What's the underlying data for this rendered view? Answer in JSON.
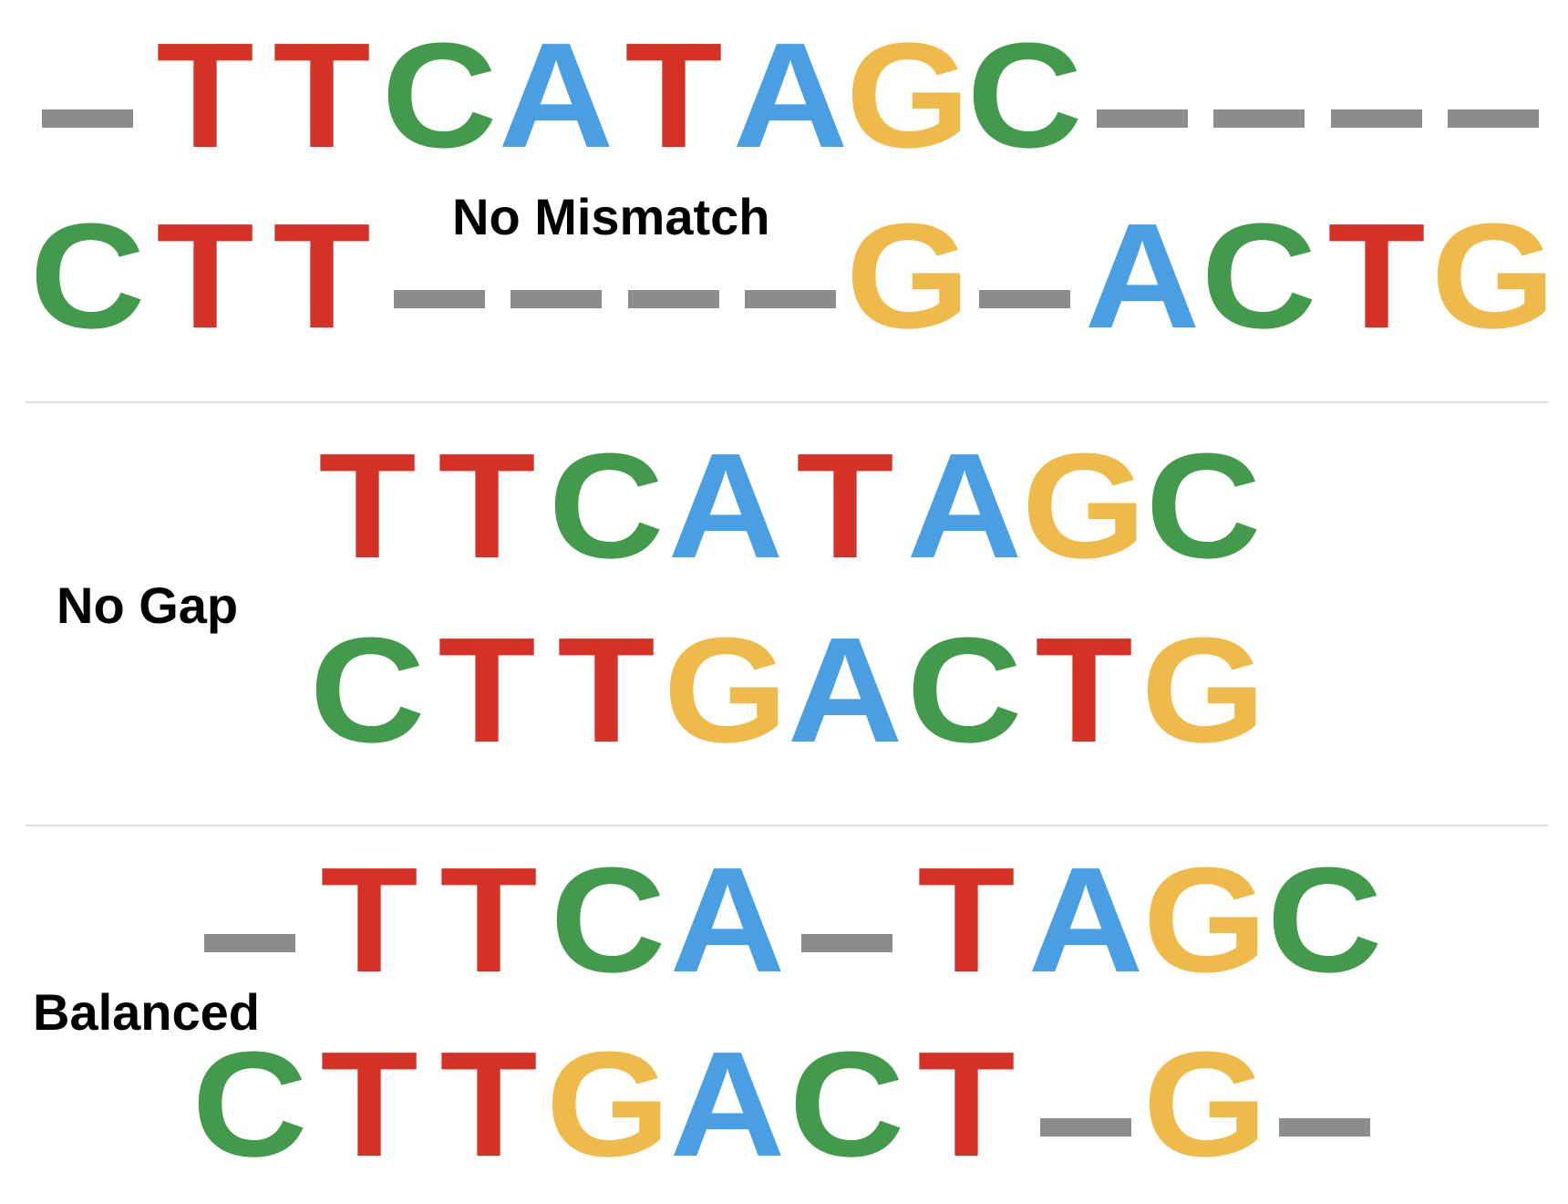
{
  "colors": {
    "A": "#4a9fe3",
    "C": "#449a4c",
    "G": "#eebb4b",
    "T": "#d43127",
    "gap": "#8c8c8c"
  },
  "panels": [
    {
      "label": "No Mismatch",
      "top_sequence": [
        "-",
        "T",
        "T",
        "C",
        "A",
        "T",
        "A",
        "G",
        "C",
        "-",
        "-",
        "-",
        "-"
      ],
      "bottom_sequence": [
        "C",
        "T",
        "T",
        "-",
        "-",
        "-",
        "-",
        "G",
        "-",
        "A",
        "C",
        "T",
        "G"
      ]
    },
    {
      "label": "No Gap",
      "top_sequence": [
        "T",
        "T",
        "C",
        "A",
        "T",
        "A",
        "G",
        "C"
      ],
      "bottom_sequence": [
        "C",
        "T",
        "T",
        "G",
        "A",
        "C",
        "T",
        "G"
      ]
    },
    {
      "label": "Balanced",
      "top_sequence": [
        "-",
        "T",
        "T",
        "C",
        "A",
        "-",
        "T",
        "A",
        "G",
        "C"
      ],
      "bottom_sequence": [
        "C",
        "T",
        "T",
        "G",
        "A",
        "C",
        "T",
        "-",
        "G",
        "-"
      ]
    }
  ]
}
